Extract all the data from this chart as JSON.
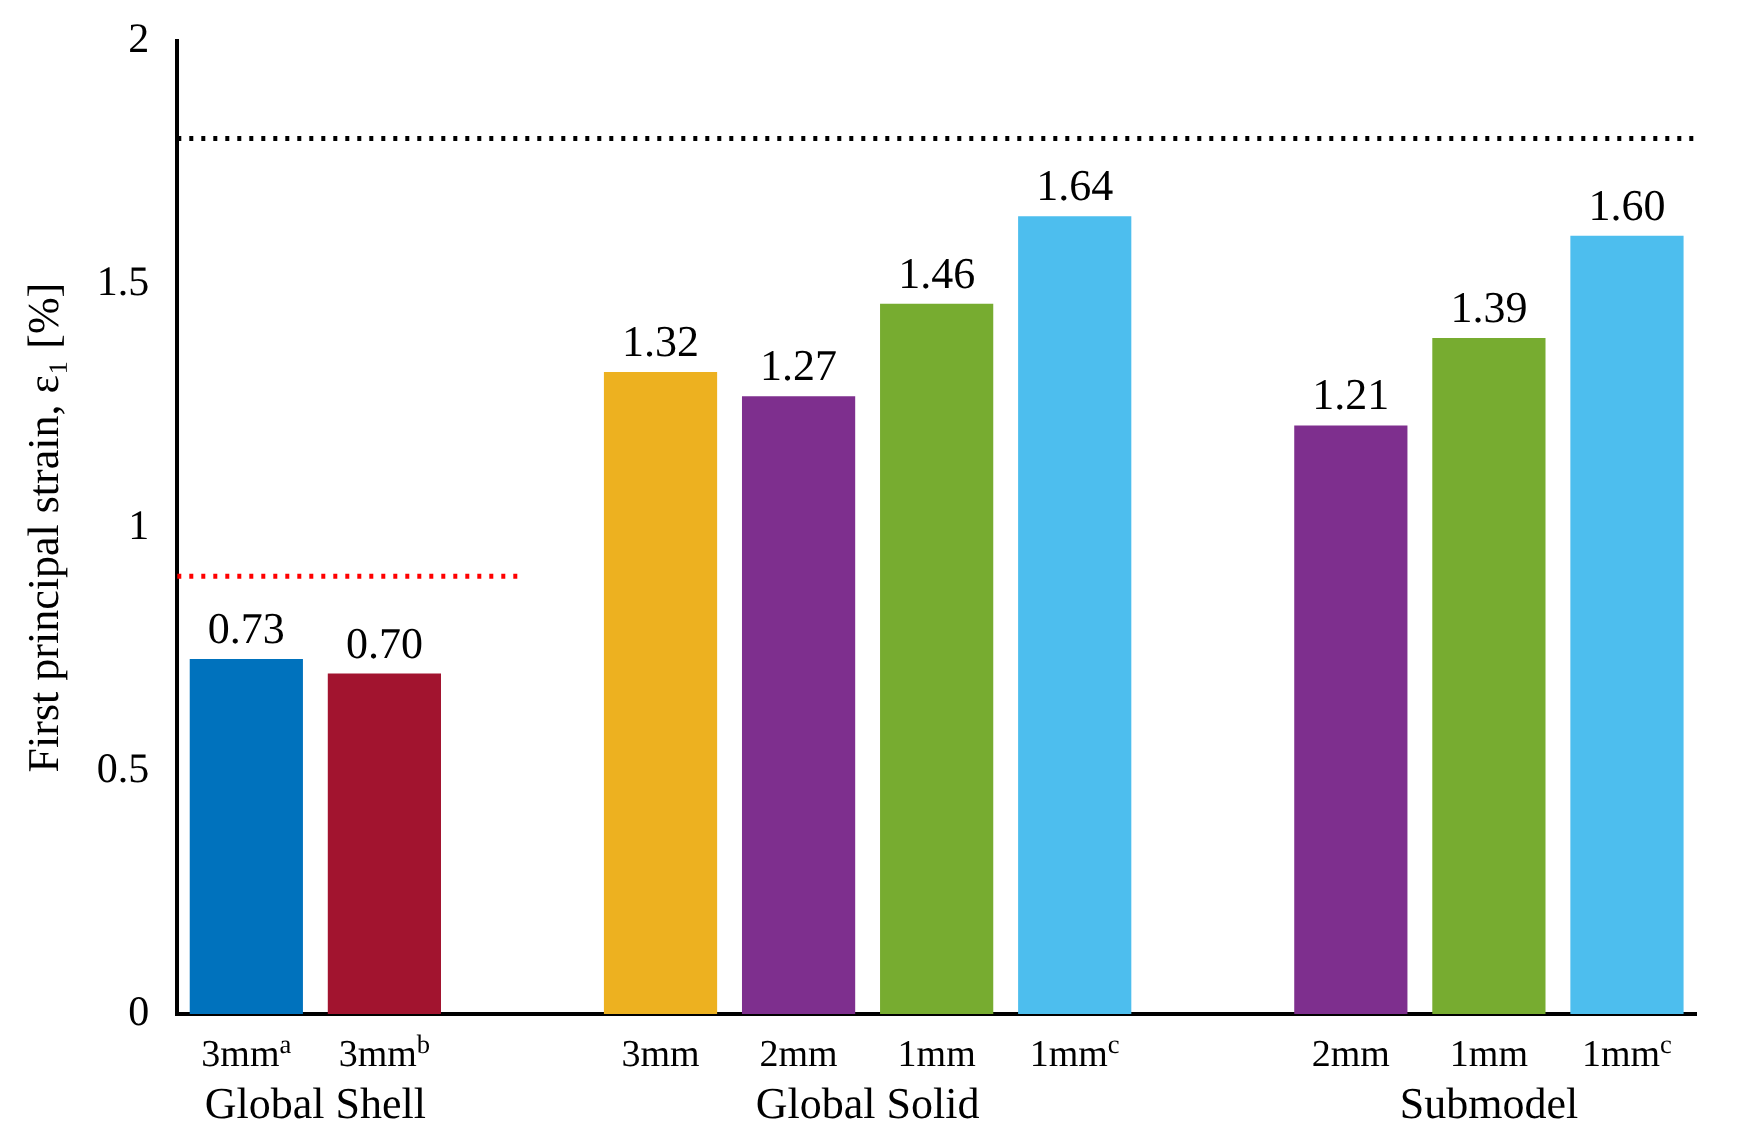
{
  "chart_data": {
    "type": "bar",
    "ylabel": "First principal strain, ε₁ [%]",
    "categories": [
      "3mm$^{a}$",
      "3mm$^{b}$",
      null,
      "3mm",
      "2mm",
      "1mm",
      "1mm$^{c}$",
      null,
      "2mm",
      "1mm",
      "1mm$^{c}$"
    ],
    "values": [
      0.73,
      0.7,
      null,
      1.32,
      1.27,
      1.46,
      1.64,
      null,
      1.21,
      1.39,
      1.6
    ],
    "colors": [
      "#0072bd",
      "#a2142f",
      "#ffffff",
      "#edb120",
      "#7e2f8e",
      "#77ac30",
      "#4dbeee",
      "#ffffff",
      "#7e2f8e",
      "#77ac30",
      "#4dbeee"
    ],
    "value_labels": [
      "0.73",
      "0.70",
      null,
      "1.32",
      "1.27",
      "1.46",
      "1.64",
      null,
      "1.21",
      "1.39",
      "1.60"
    ],
    "ylim": [
      0,
      2
    ],
    "yticks": [
      0,
      0.5,
      1,
      1.5,
      2
    ],
    "ref_lines": [
      {
        "axis": "y",
        "value": 1.8,
        "color": "#000000",
        "line_style": "dotted"
      },
      {
        "axis": "y",
        "value": 0.9,
        "color": "#ff0000",
        "line_style": "dotted"
      }
    ],
    "annotations": [
      "Global Shell",
      "Global Solid",
      "Submodel"
    ],
    "grid": false,
    "legend": false
  }
}
